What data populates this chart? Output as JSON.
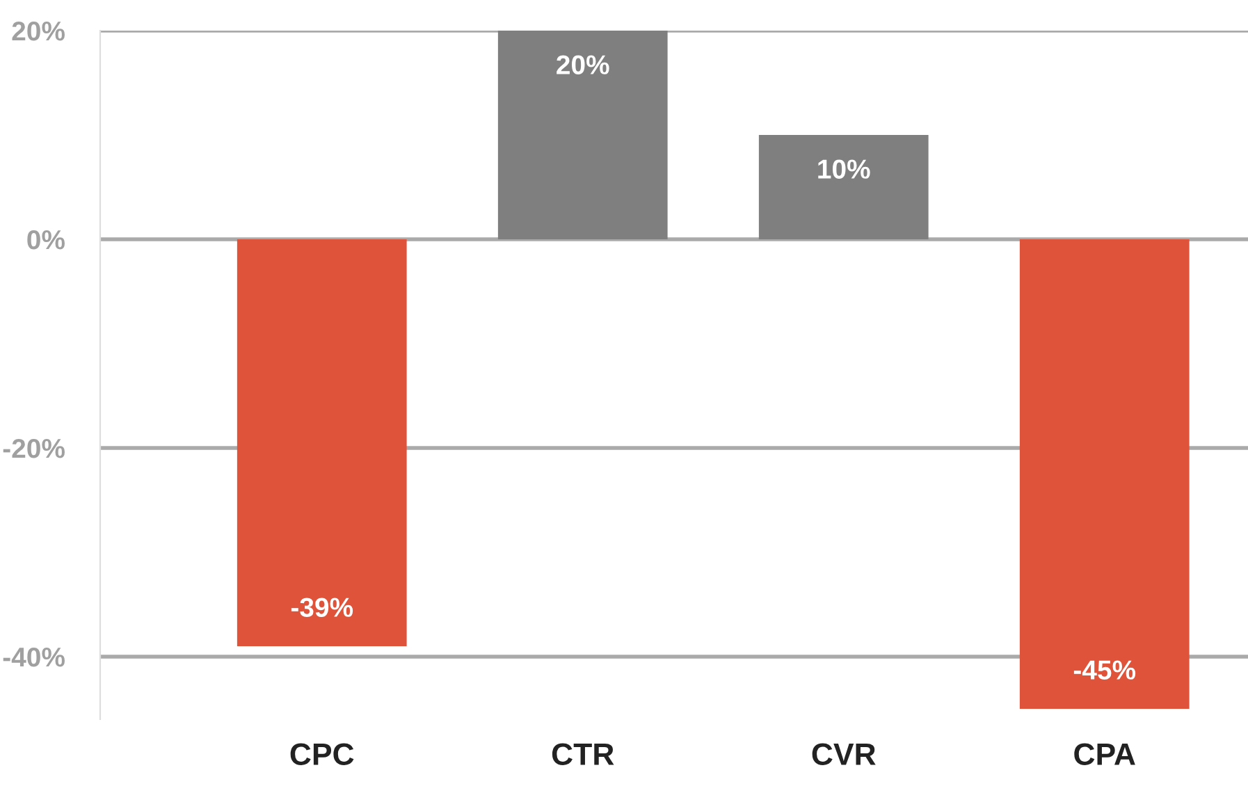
{
  "chart_data": {
    "type": "bar",
    "categories": [
      "CPC",
      "CTR",
      "CVR",
      "CPA"
    ],
    "values": [
      -39,
      20,
      10,
      -45
    ],
    "colors": [
      "#e0533b",
      "#7f7f80",
      "#7f7f80",
      "#e0533b"
    ],
    "value_labels": [
      "-39%",
      "20%",
      "10%",
      "-45%"
    ],
    "ylim": [
      -46,
      20
    ],
    "yticks": [
      {
        "value": 20,
        "label": "20%"
      },
      {
        "value": 0,
        "label": "0%"
      },
      {
        "value": -20,
        "label": "-20%"
      },
      {
        "value": -40,
        "label": "-40%"
      }
    ],
    "grid": "y"
  }
}
